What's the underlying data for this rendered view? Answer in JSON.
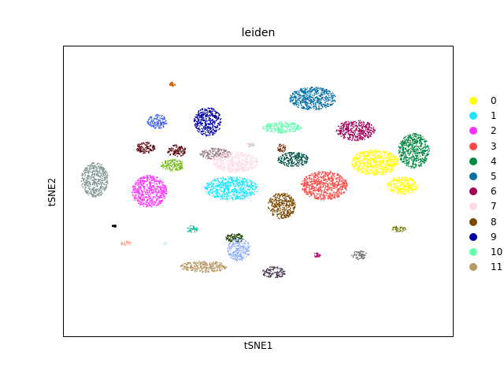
{
  "chart_data": {
    "type": "scatter",
    "title": "leiden",
    "xlabel": "tSNE1",
    "ylabel": "tSNE2",
    "xlim": [
      -50,
      50
    ],
    "ylim": [
      -50,
      50
    ],
    "grid": false,
    "legend_position": "right",
    "axis_ticks": false,
    "series": [
      {
        "name": "0",
        "color": "#ffff00",
        "clusters": [
          [
            30,
            10,
            6,
            4.5
          ],
          [
            37,
            2,
            4,
            3
          ]
        ]
      },
      {
        "name": "1",
        "color": "#1ce6ff",
        "clusters": [
          [
            -7,
            1,
            7,
            4
          ]
        ]
      },
      {
        "name": "2",
        "color": "#ff34ff",
        "clusters": [
          [
            -28,
            0,
            4.5,
            5.5
          ]
        ]
      },
      {
        "name": "3",
        "color": "#ff4a46",
        "clusters": [
          [
            17,
            2,
            6,
            5
          ]
        ]
      },
      {
        "name": "4",
        "color": "#008941",
        "clusters": [
          [
            40,
            14,
            4,
            6
          ]
        ]
      },
      {
        "name": "5",
        "color": "#006fa6",
        "clusters": [
          [
            14,
            32,
            6,
            4
          ]
        ]
      },
      {
        "name": "6",
        "color": "#a30059",
        "clusters": [
          [
            25,
            21,
            5,
            3.5
          ]
        ]
      },
      {
        "name": "7",
        "color": "#ffdbe5",
        "clusters": [
          [
            -6,
            10,
            6,
            3.5
          ]
        ]
      },
      {
        "name": "8",
        "color": "#7a4900",
        "clusters": [
          [
            6,
            -5,
            3.5,
            4.5
          ]
        ]
      },
      {
        "name": "9",
        "color": "#0000a6",
        "clusters": [
          [
            -13,
            24,
            3.5,
            5
          ]
        ]
      },
      {
        "name": "10",
        "color": "#63ffac",
        "clusters": [
          [
            6,
            22,
            5,
            2
          ]
        ]
      },
      {
        "name": "11",
        "color": "#b79762",
        "clusters": [
          [
            -14,
            -26,
            6,
            2
          ]
        ]
      }
    ],
    "unlabeled_clusters": [
      {
        "color": "#8fb0ff",
        "clusters": [
          [
            -5,
            -20,
            3,
            4
          ]
        ]
      },
      {
        "color": "#997d87",
        "clusters": [
          [
            -11,
            13,
            4,
            2
          ]
        ]
      },
      {
        "color": "#5a0007",
        "clusters": [
          [
            -29,
            15,
            2.5,
            2
          ],
          [
            -21,
            14,
            2.5,
            2
          ]
        ]
      },
      {
        "color": "#809693",
        "clusters": [
          [
            -42,
            4,
            3.5,
            6
          ]
        ]
      },
      {
        "color": "#3b5dff",
        "clusters": [
          [
            -26,
            24,
            2.5,
            2.5
          ]
        ]
      },
      {
        "color": "#4a3b53",
        "clusters": [
          [
            4,
            -28,
            3,
            2
          ]
        ]
      },
      {
        "color": "#1b4400",
        "clusters": [
          [
            -6,
            -16,
            2.5,
            1.5
          ]
        ]
      },
      {
        "color": "#d16100",
        "clusters": [
          [
            -22,
            37,
            0.8,
            0.8
          ]
        ]
      },
      {
        "color": "#004d43",
        "clusters": [
          [
            9,
            11,
            4,
            2.5
          ]
        ]
      },
      {
        "color": "#67ba00",
        "clusters": [
          [
            -22,
            9,
            3,
            2
          ]
        ]
      },
      {
        "color": "#6b7900",
        "clusters": [
          [
            36,
            -13,
            2,
            1
          ]
        ]
      },
      {
        "color": "#ffaa92",
        "clusters": [
          [
            -34,
            -18,
            1.5,
            0.8
          ]
        ]
      },
      {
        "color": "#00c2a0",
        "clusters": [
          [
            -17,
            -13,
            1.5,
            1.2
          ]
        ]
      },
      {
        "color": "#772600",
        "clusters": [
          [
            6,
            15,
            1.2,
            1.5
          ]
        ]
      },
      {
        "color": "#6f6f6f",
        "clusters": [
          [
            26,
            -22,
            2,
            1.5
          ]
        ]
      },
      {
        "color": "#c20078",
        "clusters": [
          [
            15,
            -22,
            1,
            0.8
          ]
        ]
      },
      {
        "color": "#e0c8d8",
        "clusters": [
          [
            -2,
            16,
            1,
            0.8
          ]
        ]
      },
      {
        "color": "#000000",
        "clusters": [
          [
            -37,
            -12,
            0.6,
            0.4
          ]
        ]
      },
      {
        "color": "#d7f0ff",
        "clusters": [
          [
            -24,
            -18,
            0.6,
            0.5
          ]
        ]
      }
    ]
  }
}
